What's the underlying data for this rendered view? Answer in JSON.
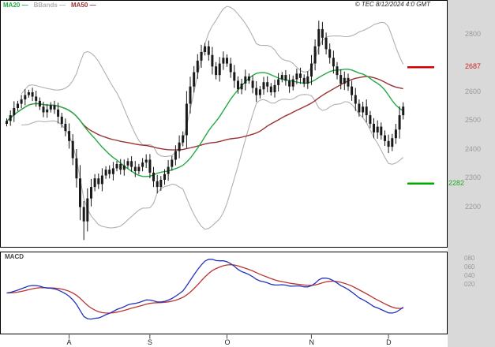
{
  "header": {
    "legend": [
      {
        "label": "MA20 —",
        "color_key": "ma20"
      },
      {
        "label": "BBands —",
        "color_key": "bbands"
      },
      {
        "label": "MA50 —",
        "color_key": "ma50"
      }
    ],
    "copyright": "© TEC 8/12/2024 4:0 GMT"
  },
  "price_axis": {
    "labels": [
      {
        "text": "2800",
        "value": 2800,
        "color": "#9a9a9a"
      },
      {
        "text": "2687",
        "value": 2687,
        "color": "#cc2222"
      },
      {
        "text": "2600",
        "value": 2600,
        "color": "#9a9a9a"
      },
      {
        "text": "2500",
        "value": 2500,
        "color": "#9a9a9a"
      },
      {
        "text": "2400",
        "value": 2400,
        "color": "#9a9a9a"
      },
      {
        "text": "2300",
        "value": 2300,
        "color": "#9a9a9a"
      },
      {
        "text": "2282",
        "value": 2282,
        "color": "#22aa22",
        "offset": true
      },
      {
        "text": "2200",
        "value": 2200,
        "color": "#9a9a9a"
      }
    ]
  },
  "macd_panel": {
    "label": "MACD",
    "axis_labels": [
      {
        "text": "080",
        "value": 0.8
      },
      {
        "text": "060",
        "value": 0.6
      },
      {
        "text": "040",
        "value": 0.4
      },
      {
        "text": "020",
        "value": 0.2
      }
    ]
  },
  "time_axis": {
    "months": [
      {
        "label": "A",
        "i": 17
      },
      {
        "label": "S",
        "i": 39
      },
      {
        "label": "O",
        "i": 60
      },
      {
        "label": "N",
        "i": 83
      },
      {
        "label": "D",
        "i": 104
      }
    ]
  },
  "chart_data": {
    "type": "candlestick",
    "title": "Price chart with MA20, MA50, Bollinger Bands and MACD panel",
    "x_step": 4.65,
    "first_open": 2490,
    "price_range": [
      2060,
      2920
    ],
    "macd_range": [
      -0.95,
      0.95
    ],
    "closes": [
      2500,
      2520,
      2545,
      2560,
      2575,
      2590,
      2600,
      2585,
      2570,
      2550,
      2530,
      2540,
      2555,
      2540,
      2515,
      2490,
      2465,
      2430,
      2370,
      2300,
      2200,
      2150,
      2230,
      2270,
      2300,
      2280,
      2310,
      2330,
      2315,
      2335,
      2350,
      2330,
      2345,
      2360,
      2340,
      2325,
      2340,
      2355,
      2365,
      2320,
      2290,
      2270,
      2295,
      2315,
      2340,
      2365,
      2395,
      2425,
      2450,
      2560,
      2620,
      2670,
      2710,
      2740,
      2760,
      2730,
      2690,
      2660,
      2700,
      2720,
      2700,
      2670,
      2640,
      2610,
      2630,
      2655,
      2640,
      2615,
      2590,
      2610,
      2635,
      2620,
      2600,
      2625,
      2645,
      2660,
      2640,
      2620,
      2645,
      2665,
      2650,
      2630,
      2655,
      2700,
      2760,
      2820,
      2790,
      2750,
      2720,
      2690,
      2660,
      2630,
      2650,
      2620,
      2590,
      2560,
      2530,
      2550,
      2520,
      2490,
      2460,
      2480,
      2450,
      2430,
      2410,
      2440,
      2470,
      2520,
      2550
    ],
    "wick_low_overrides": {
      "21": 2085
    },
    "overlays": [
      "MA20",
      "MA50",
      "Bollinger Bands (20,2)"
    ],
    "lower_panel": "MACD (12,26,9)",
    "levels": [
      {
        "name": "resistance",
        "value": 2687,
        "color": "#cc0000"
      },
      {
        "name": "support",
        "value": 2282,
        "color": "#00aa00"
      }
    ],
    "colors": {
      "candle": "#1a1a1a",
      "ma20": "#22aa44",
      "ma50": "#993333",
      "bbands": "#b0b0b0",
      "macd": "#2233bb",
      "macd_signal": "#bb3333"
    }
  }
}
